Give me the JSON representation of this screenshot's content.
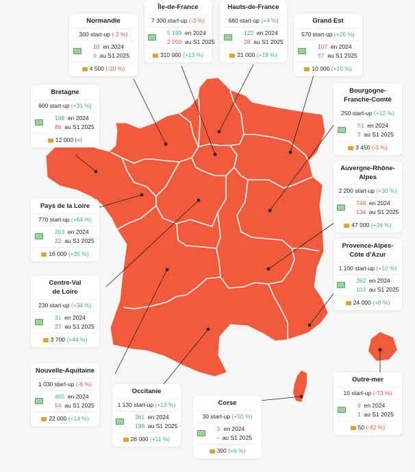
{
  "colors": {
    "region": "#f15a3a",
    "positive": "#3bab8f",
    "negative": "#e5553a",
    "neutral": "#4466c8"
  },
  "cards": [
    {
      "id": "normandie",
      "title": "Normandie",
      "total": "300 start-up",
      "total_change": "(-2 %)",
      "total_sign": "neg",
      "y2024": "10",
      "y2024_sign": "neg",
      "label2024": "en 2024",
      "s12025": "9",
      "s12025_sign": "pos",
      "labelS1": "au S1 2025",
      "jobs": "4 500",
      "jobs_change": "(-20 %)",
      "jobs_sign": "neg"
    },
    {
      "id": "idf",
      "title": "Île-de-France",
      "total": "7 300 start-up",
      "total_change": "(-3 %)",
      "total_sign": "neg",
      "y2024": "5 199",
      "y2024_sign": "pos",
      "label2024": "en 2024",
      "s12025": "2 050",
      "s12025_sign": "neg",
      "labelS1": "au S1 2025",
      "jobs": "310 000",
      "jobs_change": "(+13 %)",
      "jobs_sign": "pos"
    },
    {
      "id": "hdf",
      "title": "Hauts-de-France",
      "total": "680 start-up",
      "total_change": "(+4 %)",
      "total_sign": "pos",
      "y2024": "122",
      "y2024_sign": "pos",
      "label2024": "en 2024",
      "s12025": "28",
      "s12025_sign": "neg",
      "labelS1": "au S1 2025",
      "jobs": "21 000",
      "jobs_change": "(+19 %)",
      "jobs_sign": "pos"
    },
    {
      "id": "grandest",
      "title": "Grand Est",
      "total": "570 start-up",
      "total_change": "(+26 %)",
      "total_sign": "pos",
      "y2024": "107",
      "y2024_sign": "neg",
      "label2024": "en 2024",
      "s12025": "57",
      "s12025_sign": "pos",
      "labelS1": "au S1 2025",
      "jobs": "10 000",
      "jobs_change": "(+10 %)",
      "jobs_sign": "pos"
    },
    {
      "id": "bretagne",
      "title": "Bretagne",
      "total": "600 start-up",
      "total_change": "(+31 %)",
      "total_sign": "pos",
      "y2024": "198",
      "y2024_sign": "pos",
      "label2024": "en 2024",
      "s12025": "86",
      "s12025_sign": "neg",
      "labelS1": "au S1 2025",
      "jobs": "12 000",
      "jobs_change": "(=)",
      "jobs_sign": "neu"
    },
    {
      "id": "bfc",
      "title": "Bourgogne-\nFranche-Comté",
      "total": "250 start-up",
      "total_change": "(+12 %)",
      "total_sign": "pos",
      "y2024": "51",
      "y2024_sign": "pos",
      "label2024": "en 2024",
      "s12025": "7",
      "s12025_sign": "neg",
      "labelS1": "au S1 2025",
      "jobs": "3 450",
      "jobs_change": "(-3 %)",
      "jobs_sign": "neg"
    },
    {
      "id": "ara",
      "title": "Auvergne-Rhône-\nAlpes",
      "total": "2 200 start-up",
      "total_change": "(+30 %)",
      "total_sign": "pos",
      "y2024": "748",
      "y2024_sign": "neg",
      "label2024": "en 2024",
      "s12025": "134",
      "s12025_sign": "neg",
      "labelS1": "au S1 2025",
      "jobs": "47 000",
      "jobs_change": "(+24 %)",
      "jobs_sign": "pos"
    },
    {
      "id": "pdl",
      "title": "Pays de la Loire",
      "total": "770 start-up",
      "total_change": "(+64 %)",
      "total_sign": "pos",
      "y2024": "203",
      "y2024_sign": "pos",
      "label2024": "en 2024",
      "s12025": "22",
      "s12025_sign": "neg",
      "labelS1": "au S1 2025",
      "jobs": "16 000",
      "jobs_change": "(+35 %)",
      "jobs_sign": "pos"
    },
    {
      "id": "paca",
      "title": "Provence-Alpes-\nCôte d'Azur",
      "total": "1 100 start-up",
      "total_change": "(+10 %)",
      "total_sign": "pos",
      "y2024": "262",
      "y2024_sign": "pos",
      "label2024": "en 2024",
      "s12025": "103",
      "s12025_sign": "pos",
      "labelS1": "au S1 2025",
      "jobs": "24 000",
      "jobs_change": "(+8 %)",
      "jobs_sign": "pos"
    },
    {
      "id": "cvl",
      "title": "Centre-Val\nde Loire",
      "total": "230 start-up",
      "total_change": "(+34 %)",
      "total_sign": "pos",
      "y2024": "31",
      "y2024_sign": "pos",
      "label2024": "en 2024",
      "s12025": "27",
      "s12025_sign": "neg",
      "labelS1": "au S1 2025",
      "jobs": "3 700",
      "jobs_change": "(+44 %)",
      "jobs_sign": "pos"
    },
    {
      "id": "na",
      "title": "Nouvelle-Aquitaine",
      "total": "1 030 start-up",
      "total_change": "(-6 %)",
      "total_sign": "neg",
      "y2024": "465",
      "y2024_sign": "pos",
      "label2024": "en 2024",
      "s12025": "54",
      "s12025_sign": "neg",
      "labelS1": "au S1 2025",
      "jobs": "22 000",
      "jobs_change": "(+14 %)",
      "jobs_sign": "pos"
    },
    {
      "id": "occitanie",
      "title": "Occitanie",
      "total": "1 130 start-up",
      "total_change": "(+13 %)",
      "total_sign": "pos",
      "y2024": "361",
      "y2024_sign": "pos",
      "label2024": "en 2024",
      "s12025": "199",
      "s12025_sign": "pos",
      "labelS1": "au S1 2025",
      "jobs": "26 000",
      "jobs_change": "(+11 %)",
      "jobs_sign": "pos"
    },
    {
      "id": "corse",
      "title": "Corse",
      "total": "30 start-up",
      "total_change": "(+50 %)",
      "total_sign": "pos",
      "y2024": "5",
      "y2024_sign": "neg",
      "label2024": "en 2024",
      "s12025": "-",
      "s12025_sign": "none",
      "labelS1": "au S1 2025",
      "jobs": "300",
      "jobs_change": "(+6 %)",
      "jobs_sign": "pos"
    },
    {
      "id": "om",
      "title": "Outre-mer",
      "total": "10 start-up",
      "total_change": "(-73 %)",
      "total_sign": "neg",
      "y2024": "9",
      "y2024_sign": "pos",
      "label2024": "en 2024",
      "s12025": "1",
      "s12025_sign": "neg",
      "labelS1": "au S1 2025",
      "jobs": "50",
      "jobs_change": "(-82 %)",
      "jobs_sign": "neg"
    }
  ]
}
